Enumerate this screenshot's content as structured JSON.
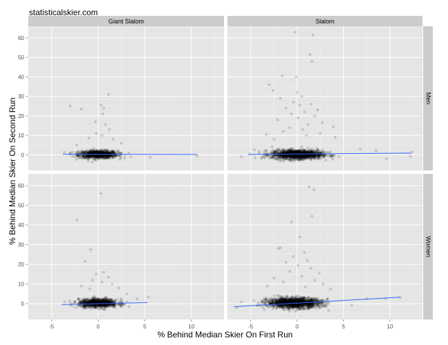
{
  "site_title": "statisticalskier.com",
  "chart_data": {
    "type": "scatter",
    "xlabel": "% Behind Median Skier On First Run",
    "ylabel": "% Behind Median Skier On Second Run",
    "column_facets": [
      "Giant Slalom",
      "Slalom"
    ],
    "row_facets": [
      "Men",
      "Women"
    ],
    "xlim": [
      -7.5,
      13.5
    ],
    "ylim": [
      -8,
      66
    ],
    "xticks": [
      -5,
      0,
      5,
      10
    ],
    "yticks": [
      0,
      10,
      20,
      30,
      40,
      50,
      60
    ],
    "grid": true,
    "point_color": "#000000",
    "point_alpha": 0.15,
    "fit_line_color": "#3366FF",
    "panels": [
      {
        "col": "Giant Slalom",
        "row": "Men",
        "fit_line": [
          [
            -3.8,
            0.3
          ],
          [
            10.6,
            0.2
          ]
        ],
        "cluster": {
          "x_center": 0,
          "x_spread": 1.3,
          "y_center": 0.2,
          "y_spread": 1.4,
          "n": 900
        },
        "outliers": [
          [
            -3,
            25
          ],
          [
            -1.8,
            23.5
          ],
          [
            1.1,
            31
          ],
          [
            0.3,
            25.5
          ],
          [
            0.6,
            24
          ],
          [
            0.5,
            21
          ],
          [
            -0.3,
            17
          ],
          [
            0.8,
            15.5
          ],
          [
            1.2,
            13
          ],
          [
            -0.2,
            11
          ],
          [
            0.4,
            10
          ],
          [
            1.6,
            8
          ],
          [
            -1,
            8.5
          ],
          [
            2.5,
            6
          ],
          [
            -2.3,
            5
          ],
          [
            10.6,
            -0.5
          ],
          [
            5.6,
            -1.3
          ],
          [
            3.5,
            -1
          ]
        ]
      },
      {
        "col": "Slalom",
        "row": "Men",
        "fit_line": [
          [
            -5.2,
            0.2
          ],
          [
            12.3,
            0.9
          ]
        ],
        "cluster": {
          "x_center": 0,
          "x_spread": 1.7,
          "y_center": 0.2,
          "y_spread": 1.6,
          "n": 1400
        },
        "outliers": [
          [
            -0.2,
            63
          ],
          [
            1.7,
            61.5
          ],
          [
            1.4,
            51.5
          ],
          [
            1.6,
            48
          ],
          [
            -1.6,
            40.5
          ],
          [
            -0.1,
            40
          ],
          [
            -3,
            36
          ],
          [
            -2.6,
            33
          ],
          [
            0,
            32
          ],
          [
            0.5,
            30
          ],
          [
            -1.8,
            29
          ],
          [
            -0.4,
            27
          ],
          [
            1.5,
            26
          ],
          [
            0.3,
            25.5
          ],
          [
            -1.2,
            24
          ],
          [
            2.2,
            23
          ],
          [
            0.8,
            22
          ],
          [
            -0.6,
            21
          ],
          [
            1.9,
            20
          ],
          [
            0.1,
            19
          ],
          [
            -2.1,
            18
          ],
          [
            2.7,
            16.5
          ],
          [
            1.2,
            15.5
          ],
          [
            -0.8,
            14
          ],
          [
            0.6,
            13
          ],
          [
            -1.5,
            12
          ],
          [
            3.9,
            14.5
          ],
          [
            2.5,
            11
          ],
          [
            -3.3,
            10.5
          ],
          [
            1,
            10
          ],
          [
            4.1,
            9
          ],
          [
            -2.5,
            8
          ],
          [
            6.8,
            3
          ],
          [
            8.5,
            2.2
          ],
          [
            12.4,
            1.5
          ],
          [
            12.2,
            -0.8
          ],
          [
            9.6,
            -2
          ],
          [
            -6,
            -1
          ]
        ]
      },
      {
        "col": "Giant Slalom",
        "row": "Women",
        "fit_line": [
          [
            -3.9,
            -0.4
          ],
          [
            5.3,
            0.6
          ]
        ],
        "cluster": {
          "x_center": 0,
          "x_spread": 1.3,
          "y_center": 0.3,
          "y_spread": 1.5,
          "n": 900
        },
        "outliers": [
          [
            0.3,
            56
          ],
          [
            -2.3,
            42.5
          ],
          [
            -0.8,
            27.5
          ],
          [
            -1.4,
            21.5
          ],
          [
            0.6,
            16
          ],
          [
            -0.2,
            15
          ],
          [
            1.1,
            13.5
          ],
          [
            -0.6,
            12
          ],
          [
            0.4,
            11
          ],
          [
            1.5,
            10
          ],
          [
            -1.8,
            9
          ],
          [
            2.2,
            8
          ],
          [
            -0.9,
            7.5
          ],
          [
            3.1,
            5
          ],
          [
            5.4,
            3.5
          ],
          [
            4.2,
            2.5
          ],
          [
            -3.6,
            1
          ]
        ]
      },
      {
        "col": "Slalom",
        "row": "Women",
        "fit_line": [
          [
            -6.8,
            -1.5
          ],
          [
            11.1,
            3.3
          ]
        ],
        "cluster": {
          "x_center": -0.3,
          "x_spread": 1.8,
          "y_center": 0.4,
          "y_spread": 1.8,
          "n": 1400
        },
        "outliers": [
          [
            1.3,
            59.5
          ],
          [
            1.8,
            58
          ],
          [
            1.6,
            44.5
          ],
          [
            -0.6,
            41.5
          ],
          [
            0.3,
            34
          ],
          [
            -1.8,
            28.5
          ],
          [
            -2,
            28
          ],
          [
            0.8,
            26
          ],
          [
            -0.4,
            24
          ],
          [
            1.1,
            22
          ],
          [
            -1.2,
            21
          ],
          [
            0.1,
            19.5
          ],
          [
            1.5,
            18
          ],
          [
            -0.8,
            16.5
          ],
          [
            2.4,
            15.5
          ],
          [
            0.5,
            14
          ],
          [
            -2.5,
            13
          ],
          [
            1.9,
            12
          ],
          [
            -1.5,
            11
          ],
          [
            2.8,
            10
          ],
          [
            -3.2,
            9
          ],
          [
            0.9,
            8.5
          ],
          [
            3.6,
            7.5
          ],
          [
            -6,
            1
          ],
          [
            11.1,
            3.1
          ],
          [
            7.5,
            2.5
          ],
          [
            9.5,
            2.6
          ],
          [
            -6.5,
            -2
          ]
        ]
      }
    ]
  }
}
